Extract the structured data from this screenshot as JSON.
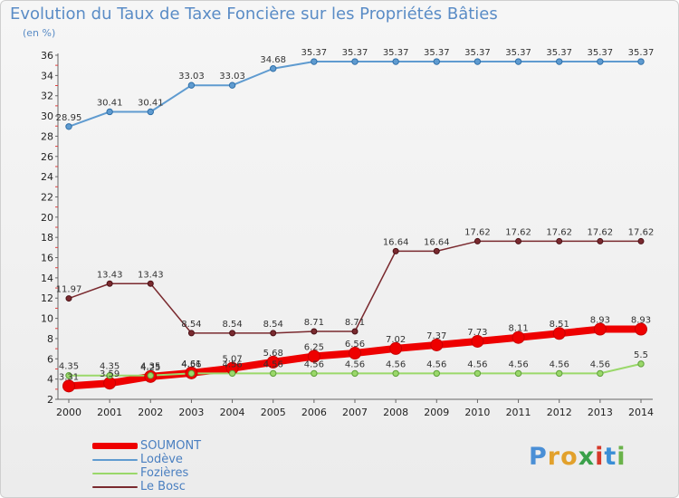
{
  "header": {
    "title": "Evolution du Taux de Taxe Foncière sur les Propriétés Bâties",
    "unit": "(en %)"
  },
  "chart_data": {
    "type": "line",
    "title": "Evolution du Taux de Taxe Foncière sur les Propriétés Bâties",
    "ylabel": "(en %)",
    "xlabel": "",
    "x": [
      "2000",
      "2001",
      "2002",
      "2003",
      "2004",
      "2005",
      "2006",
      "2007",
      "2008",
      "2009",
      "2010",
      "2011",
      "2012",
      "2013",
      "2014"
    ],
    "ylim": [
      2,
      36
    ],
    "yticks": [
      2,
      4,
      6,
      8,
      10,
      12,
      14,
      16,
      18,
      20,
      22,
      24,
      26,
      28,
      30,
      32,
      34,
      36
    ],
    "grid": false,
    "legend_position": "bottom-left",
    "series": [
      {
        "name": "SOUMONT",
        "color": "#ee0000",
        "values": [
          3.31,
          3.59,
          4.25,
          4.61,
          5.07,
          5.68,
          6.25,
          6.56,
          7.02,
          7.37,
          7.73,
          8.11,
          8.51,
          8.93,
          8.93
        ],
        "labels": [
          "3.31",
          "3.59",
          "4.25",
          "4.61",
          "5.07",
          "5.68",
          "6.25",
          "6.56",
          "7.02",
          "7.37",
          "7.73",
          "8.11",
          "8.51",
          "8.93",
          "8.93"
        ]
      },
      {
        "name": "Lodève",
        "color": "#5f9bd0",
        "values": [
          28.95,
          30.41,
          30.41,
          33.03,
          33.03,
          34.68,
          35.37,
          35.37,
          35.37,
          35.37,
          35.37,
          35.37,
          35.37,
          35.37,
          35.37
        ],
        "labels": [
          "28.95",
          "30.41",
          "30.41",
          "33.03",
          "33.03",
          "34.68",
          "35.37",
          "35.37",
          "35.37",
          "35.37",
          "35.37",
          "35.37",
          "35.37",
          "35.37",
          "35.37"
        ]
      },
      {
        "name": "Fozières",
        "color": "#9ad86a",
        "values": [
          4.35,
          4.35,
          4.35,
          4.56,
          4.56,
          4.56,
          4.56,
          4.56,
          4.56,
          4.56,
          4.56,
          4.56,
          4.56,
          4.56,
          5.5
        ],
        "labels": [
          "4.35",
          "4.35",
          "4.35",
          "4.56",
          "4.56",
          "4.56",
          "4.56",
          "4.56",
          "4.56",
          "4.56",
          "4.56",
          "4.56",
          "4.56",
          "4.56",
          "5.5"
        ]
      },
      {
        "name": "Le Bosc",
        "color": "#7a2a2f",
        "values": [
          11.97,
          13.43,
          13.43,
          8.54,
          8.54,
          8.54,
          8.71,
          8.71,
          16.64,
          16.64,
          17.62,
          17.62,
          17.62,
          17.62,
          17.62
        ],
        "labels": [
          "11.97",
          "13.43",
          "13.43",
          "8.54",
          "8.54",
          "8.54",
          "8.71",
          "8.71",
          "16.64",
          "16.64",
          "17.62",
          "17.62",
          "17.62",
          "17.62",
          "17.62"
        ]
      }
    ]
  },
  "legend": [
    {
      "label": "SOUMONT",
      "color": "#ee0000"
    },
    {
      "label": "Lodève",
      "color": "#5f9bd0"
    },
    {
      "label": "Fozières",
      "color": "#9ad86a"
    },
    {
      "label": "Le Bosc",
      "color": "#7a2a2f"
    }
  ],
  "logo": {
    "text": "Proxiti",
    "letters": [
      "P",
      "r",
      "o",
      "x",
      "i",
      "t",
      "i"
    ],
    "letter_colors": [
      "#4a8fd6",
      "#e2a12c",
      "#e2a12c",
      "#3aa04a",
      "#d6382a",
      "#3a8ed6",
      "#6ab34a"
    ]
  }
}
